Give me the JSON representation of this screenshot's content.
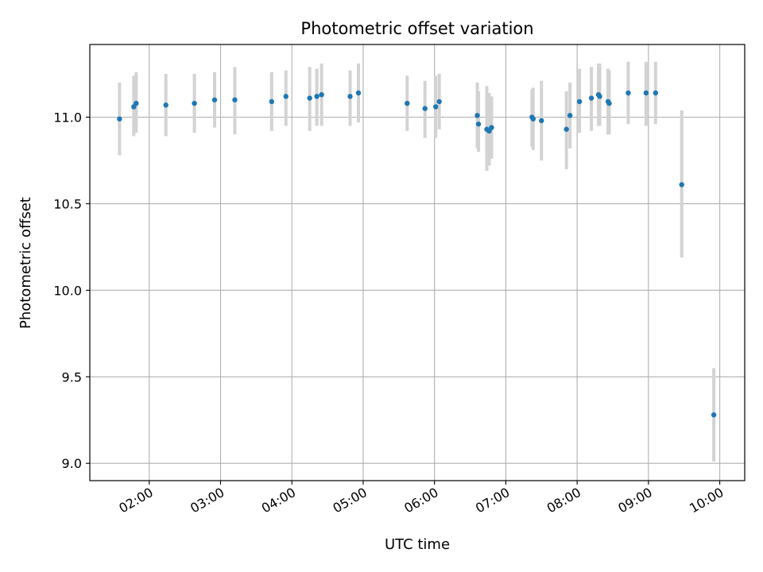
{
  "chart_data": {
    "type": "scatter",
    "title": "Photometric offset variation",
    "xlabel": "UTC time",
    "ylabel": "Photometric offset",
    "xlim": [
      "01:10",
      "10:21"
    ],
    "ylim": [
      8.9,
      11.42
    ],
    "grid": true,
    "x_ticks": [
      "02:00",
      "03:00",
      "04:00",
      "05:00",
      "06:00",
      "07:00",
      "08:00",
      "09:00",
      "10:00"
    ],
    "y_ticks": [
      9.0,
      9.5,
      10.0,
      10.5,
      11.0
    ],
    "y_tick_labels": [
      "9.0",
      "9.5",
      "10.0",
      "10.5",
      "11.0"
    ],
    "colors": {
      "point": "#1f77b4",
      "errorbar": "#d3d3d3",
      "grid": "#b0b0b0"
    },
    "points": [
      {
        "t": "01:35",
        "y": 10.99,
        "lo": 10.78,
        "hi": 11.2
      },
      {
        "t": "01:47",
        "y": 11.06,
        "lo": 10.89,
        "hi": 11.24
      },
      {
        "t": "01:49",
        "y": 11.08,
        "lo": 10.91,
        "hi": 11.26
      },
      {
        "t": "02:14",
        "y": 11.07,
        "lo": 10.89,
        "hi": 11.25
      },
      {
        "t": "02:38",
        "y": 11.08,
        "lo": 10.91,
        "hi": 11.25
      },
      {
        "t": "02:55",
        "y": 11.1,
        "lo": 10.94,
        "hi": 11.26
      },
      {
        "t": "03:12",
        "y": 11.1,
        "lo": 10.9,
        "hi": 11.29
      },
      {
        "t": "03:43",
        "y": 11.09,
        "lo": 10.92,
        "hi": 11.26
      },
      {
        "t": "03:55",
        "y": 11.12,
        "lo": 10.95,
        "hi": 11.27
      },
      {
        "t": "04:15",
        "y": 11.11,
        "lo": 10.92,
        "hi": 11.29
      },
      {
        "t": "04:21",
        "y": 11.12,
        "lo": 10.95,
        "hi": 11.28
      },
      {
        "t": "04:25",
        "y": 11.13,
        "lo": 10.95,
        "hi": 11.31
      },
      {
        "t": "04:49",
        "y": 11.12,
        "lo": 10.95,
        "hi": 11.27
      },
      {
        "t": "04:56",
        "y": 11.14,
        "lo": 10.97,
        "hi": 11.31
      },
      {
        "t": "05:37",
        "y": 11.08,
        "lo": 10.92,
        "hi": 11.24
      },
      {
        "t": "05:52",
        "y": 11.05,
        "lo": 10.88,
        "hi": 11.21
      },
      {
        "t": "06:01",
        "y": 11.06,
        "lo": 10.88,
        "hi": 11.24
      },
      {
        "t": "06:04",
        "y": 11.09,
        "lo": 10.93,
        "hi": 11.25
      },
      {
        "t": "06:36",
        "y": 11.01,
        "lo": 10.82,
        "hi": 11.2
      },
      {
        "t": "06:37",
        "y": 10.96,
        "lo": 10.8,
        "hi": 11.15
      },
      {
        "t": "06:44",
        "y": 10.93,
        "lo": 10.69,
        "hi": 11.18
      },
      {
        "t": "06:46",
        "y": 10.92,
        "lo": 10.72,
        "hi": 11.14
      },
      {
        "t": "06:48",
        "y": 10.94,
        "lo": 10.76,
        "hi": 11.12
      },
      {
        "t": "07:22",
        "y": 11.0,
        "lo": 10.83,
        "hi": 11.16
      },
      {
        "t": "07:23",
        "y": 10.99,
        "lo": 10.81,
        "hi": 11.17
      },
      {
        "t": "07:30",
        "y": 10.98,
        "lo": 10.75,
        "hi": 11.21
      },
      {
        "t": "07:51",
        "y": 10.93,
        "lo": 10.7,
        "hi": 11.15
      },
      {
        "t": "07:54",
        "y": 11.01,
        "lo": 10.82,
        "hi": 11.2
      },
      {
        "t": "08:02",
        "y": 11.09,
        "lo": 10.91,
        "hi": 11.28
      },
      {
        "t": "08:12",
        "y": 11.11,
        "lo": 10.92,
        "hi": 11.29
      },
      {
        "t": "08:18",
        "y": 11.13,
        "lo": 10.95,
        "hi": 11.31
      },
      {
        "t": "08:19",
        "y": 11.12,
        "lo": 10.95,
        "hi": 11.31
      },
      {
        "t": "08:26",
        "y": 11.09,
        "lo": 10.9,
        "hi": 11.28
      },
      {
        "t": "08:27",
        "y": 11.08,
        "lo": 10.9,
        "hi": 11.27
      },
      {
        "t": "08:43",
        "y": 11.14,
        "lo": 10.96,
        "hi": 11.32
      },
      {
        "t": "08:58",
        "y": 11.14,
        "lo": 10.95,
        "hi": 11.32
      },
      {
        "t": "09:06",
        "y": 11.14,
        "lo": 10.96,
        "hi": 11.32
      },
      {
        "t": "09:28",
        "y": 10.61,
        "lo": 10.19,
        "hi": 11.04
      },
      {
        "t": "09:55",
        "y": 9.28,
        "lo": 9.01,
        "hi": 9.55
      }
    ]
  }
}
